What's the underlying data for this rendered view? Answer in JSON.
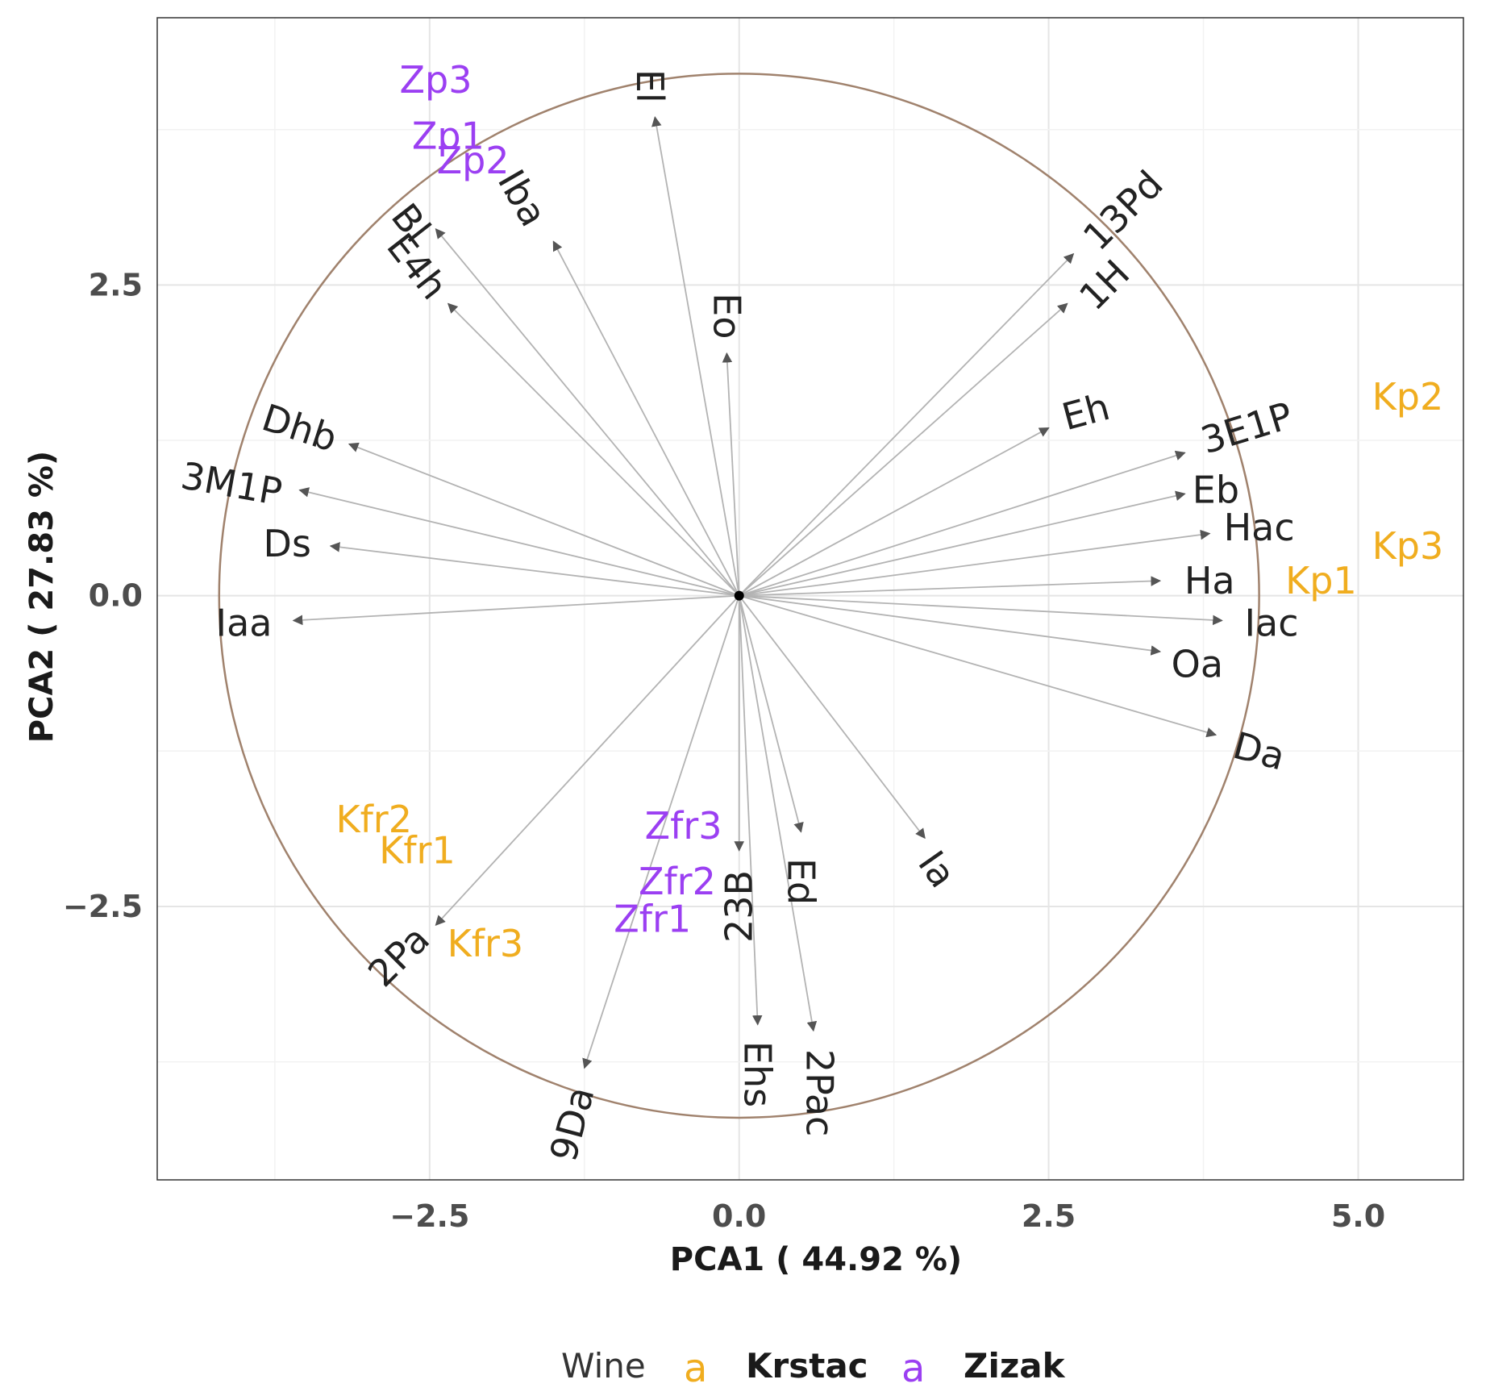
{
  "chart_data": {
    "type": "scatter",
    "subtype": "pca-biplot",
    "xlabel": "PCA1 ( 44.92 %)",
    "ylabel": "PCA2 ( 27.83 %)",
    "xlim": [
      -4.7,
      5.85
    ],
    "ylim": [
      -4.7,
      4.65
    ],
    "xticks": [
      {
        "v": -2.5,
        "label": "−2.5"
      },
      {
        "v": 0,
        "label": "0.0"
      },
      {
        "v": 2.5,
        "label": "2.5"
      },
      {
        "v": 5,
        "label": "5.0"
      }
    ],
    "yticks": [
      {
        "v": -2.5,
        "label": "−2.5"
      },
      {
        "v": 0,
        "label": "0.0"
      },
      {
        "v": 2.5,
        "label": "2.5"
      }
    ],
    "grid": true,
    "circle": {
      "cx": 0,
      "cy": 0,
      "r": 4.2,
      "color": "#a0826d"
    },
    "colors": {
      "krstac": "#f0ad1f",
      "zizak": "#9b3ff2",
      "arrow": "#b3b3b3",
      "center": "#000000"
    },
    "legend": {
      "title": "Wine",
      "key_glyph": "a",
      "position": "bottom",
      "entries": [
        {
          "name": "Krstac",
          "color": "#f0ad1f"
        },
        {
          "name": "Zizak",
          "color": "#9b3ff2"
        }
      ]
    },
    "loadings": [
      {
        "name": "El",
        "x": -0.68,
        "y": 3.85,
        "lx": -0.72,
        "ly": 4.1,
        "rot": 90
      },
      {
        "name": "Iba",
        "x": -1.5,
        "y": 2.85,
        "lx": -1.75,
        "ly": 3.2,
        "rot": 60
      },
      {
        "name": "Bl",
        "x": -2.45,
        "y": 2.95,
        "lx": -2.65,
        "ly": 3.0,
        "rot": 52
      },
      {
        "name": "E4h",
        "x": -2.35,
        "y": 2.35,
        "lx": -2.6,
        "ly": 2.65,
        "rot": 52
      },
      {
        "name": "Eo",
        "x": -0.1,
        "y": 1.95,
        "lx": -0.1,
        "ly": 2.25,
        "rot": 90
      },
      {
        "name": "Dhb",
        "x": -3.15,
        "y": 1.22,
        "lx": -3.55,
        "ly": 1.35,
        "rot": 18
      },
      {
        "name": "3M1P",
        "x": -3.55,
        "y": 0.85,
        "lx": -4.1,
        "ly": 0.9,
        "rot": 10
      },
      {
        "name": "Ds",
        "x": -3.3,
        "y": 0.4,
        "lx": -3.65,
        "ly": 0.42,
        "rot": 0
      },
      {
        "name": "Iaa",
        "x": -3.6,
        "y": -0.2,
        "lx": -4.0,
        "ly": -0.22,
        "rot": 0
      },
      {
        "name": "13Pd",
        "x": 2.7,
        "y": 2.75,
        "lx": 3.1,
        "ly": 3.1,
        "rot": -45
      },
      {
        "name": "1H",
        "x": 2.65,
        "y": 2.35,
        "lx": 2.95,
        "ly": 2.5,
        "rot": -45
      },
      {
        "name": "Eh",
        "x": 2.5,
        "y": 1.35,
        "lx": 2.8,
        "ly": 1.48,
        "rot": -15
      },
      {
        "name": "3E1P",
        "x": 3.6,
        "y": 1.15,
        "lx": 4.1,
        "ly": 1.35,
        "rot": -17
      },
      {
        "name": "Eb",
        "x": 3.6,
        "y": 0.82,
        "lx": 3.85,
        "ly": 0.85,
        "rot": 0
      },
      {
        "name": "Hac",
        "x": 3.8,
        "y": 0.5,
        "lx": 4.2,
        "ly": 0.55,
        "rot": 0
      },
      {
        "name": "Ha",
        "x": 3.4,
        "y": 0.12,
        "lx": 3.8,
        "ly": 0.12,
        "rot": 0
      },
      {
        "name": "Iac",
        "x": 3.9,
        "y": -0.2,
        "lx": 4.3,
        "ly": -0.22,
        "rot": 0
      },
      {
        "name": "Oa",
        "x": 3.4,
        "y": -0.45,
        "lx": 3.7,
        "ly": -0.55,
        "rot": 0
      },
      {
        "name": "Da",
        "x": 3.85,
        "y": -1.12,
        "lx": 4.2,
        "ly": -1.25,
        "rot": 15
      },
      {
        "name": "Ia",
        "x": 1.5,
        "y": -1.95,
        "lx": 1.6,
        "ly": -2.2,
        "rot": 55
      },
      {
        "name": "Ed",
        "x": 0.5,
        "y": -1.9,
        "lx": 0.5,
        "ly": -2.3,
        "rot": 90
      },
      {
        "name": "23B",
        "x": 0.0,
        "y": -2.05,
        "lx": 0.0,
        "ly": -2.5,
        "rot": -90
      },
      {
        "name": "2Pa",
        "x": -2.45,
        "y": -2.65,
        "lx": -2.75,
        "ly": -2.9,
        "rot": -45
      },
      {
        "name": "9Da",
        "x": -1.25,
        "y": -3.8,
        "lx": -1.35,
        "ly": -4.25,
        "rot": -75
      },
      {
        "name": "Ehs",
        "x": 0.15,
        "y": -3.45,
        "lx": 0.15,
        "ly": -3.85,
        "rot": 90
      },
      {
        "name": "2Pac",
        "x": 0.6,
        "y": -3.5,
        "lx": 0.65,
        "ly": -4.0,
        "rot": 90
      }
    ],
    "observations": [
      {
        "name": "Zp3",
        "x": -2.45,
        "y": 4.15,
        "group": "Zizak"
      },
      {
        "name": "Zp1",
        "x": -2.35,
        "y": 3.7,
        "group": "Zizak"
      },
      {
        "name": "Zp2",
        "x": -2.15,
        "y": 3.5,
        "group": "Zizak"
      },
      {
        "name": "Kp2",
        "x": 5.4,
        "y": 1.6,
        "group": "Krstac"
      },
      {
        "name": "Kp3",
        "x": 5.4,
        "y": 0.4,
        "group": "Krstac"
      },
      {
        "name": "Kp1",
        "x": 4.7,
        "y": 0.12,
        "group": "Krstac"
      },
      {
        "name": "Kfr2",
        "x": -2.95,
        "y": -1.8,
        "group": "Krstac"
      },
      {
        "name": "Kfr1",
        "x": -2.6,
        "y": -2.05,
        "group": "Krstac"
      },
      {
        "name": "Kfr3",
        "x": -2.05,
        "y": -2.8,
        "group": "Krstac"
      },
      {
        "name": "Zfr3",
        "x": -0.45,
        "y": -1.85,
        "group": "Zizak"
      },
      {
        "name": "Zfr2",
        "x": -0.5,
        "y": -2.3,
        "group": "Zizak"
      },
      {
        "name": "Zfr1",
        "x": -0.7,
        "y": -2.6,
        "group": "Zizak"
      }
    ]
  }
}
